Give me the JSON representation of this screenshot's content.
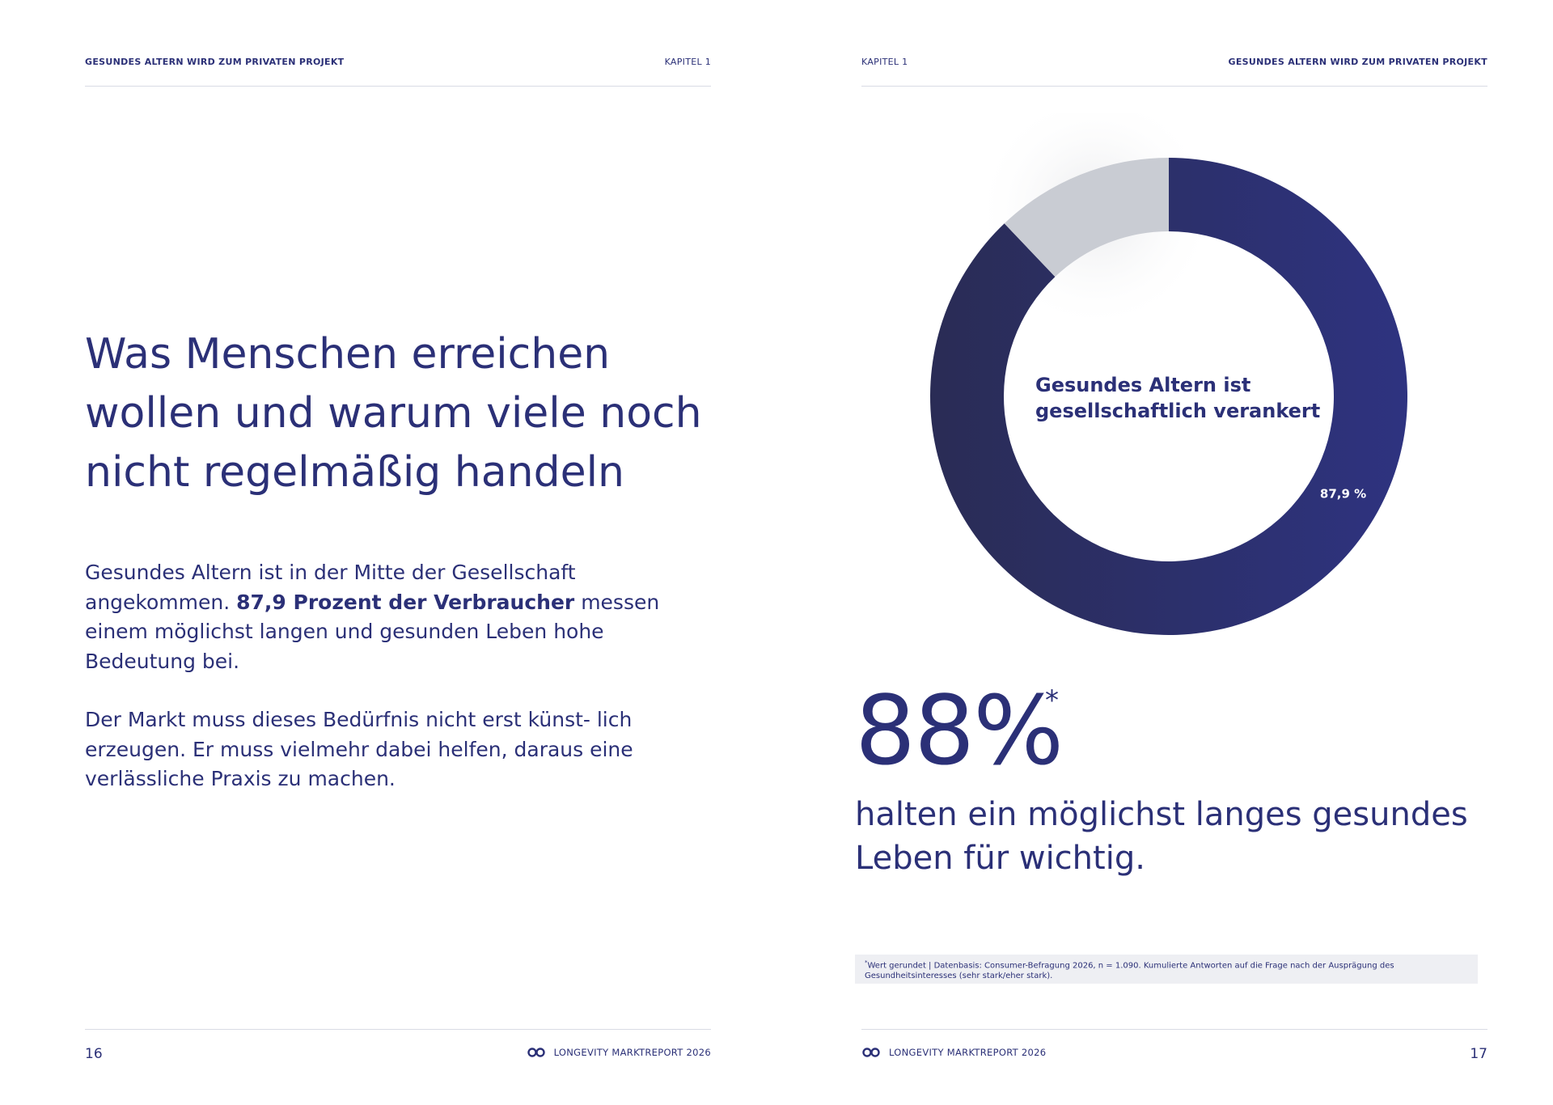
{
  "left": {
    "header_title": "GESUNDES ALTERN WIRD ZUM PRIVATEN PROJEKT",
    "header_chapter": "KAPITEL 1",
    "headline": [
      "Was Menschen erreichen",
      "wollen und warum viele noch",
      "nicht regelmäßig handeln"
    ],
    "para1_a": "Gesundes Altern ist in der Mitte der Gesellschaft angekommen. ",
    "para1_bold": "87,9 Prozent der Verbraucher",
    "para1_b": " messen einem möglichst langen und gesunden Leben hohe Bedeutung bei.",
    "para2": "Der Markt muss dieses Bedürfnis nicht erst künst- lich erzeugen. Er muss vielmehr dabei helfen, daraus eine verlässliche Praxis zu machen.",
    "page_number": "16",
    "footer_brand": "LONGEVITY MARKTREPORT 2026"
  },
  "right": {
    "header_chapter": "KAPITEL 1",
    "header_title": "GESUNDES ALTERN WIRD ZUM PRIVATEN PROJEKT",
    "donut_center": [
      "Gesundes Altern ist",
      "gesellschaftlich verankert"
    ],
    "big_value": "88%",
    "big_value_mark": "*",
    "subline": "halten ein möglichst langes gesundes Leben für wichtig.",
    "footnote_mark": "*",
    "footnote": "Wert gerundet | Datenbasis: Consumer-Befragung 2026, n = 1.090. Kumulierte Antworten auf die Frage nach der Ausprägung des Gesundheitsinteresses (sehr stark/eher stark).",
    "page_number": "17",
    "footer_brand": "LONGEVITY MARKTREPORT 2026"
  },
  "colors": {
    "primary": "#2b3077",
    "dark": "#2a2c55",
    "grey": "#c9ccd3"
  },
  "chart_data": {
    "type": "pie",
    "categories": [
      "",
      ""
    ],
    "values": [
      87.9,
      12.1
    ],
    "labels": [
      "87,9 %",
      ""
    ],
    "colors": [
      "#2b3077",
      "#c9ccd3"
    ],
    "donut": true
  }
}
